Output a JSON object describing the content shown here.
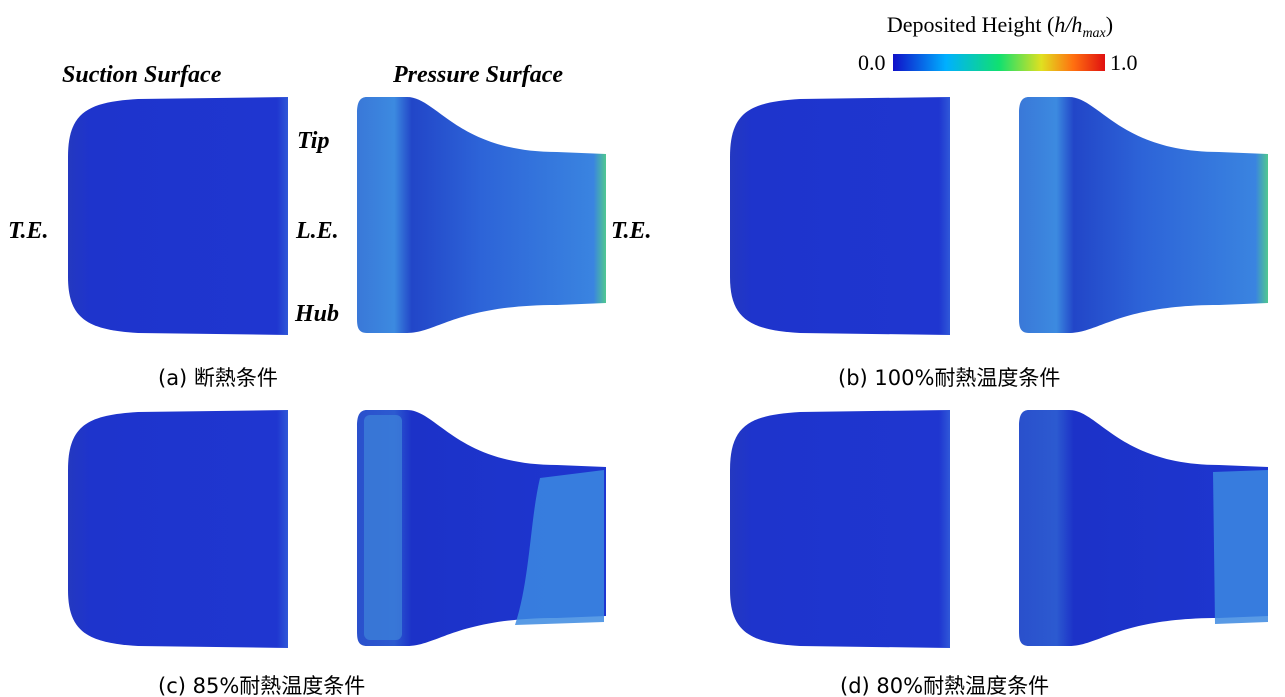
{
  "colorbar": {
    "title": {
      "prefix": "Deposited Height (",
      "variable": "h/h",
      "subscript": "max",
      "suffix": ")"
    },
    "min_label": "0.0",
    "max_label": "1.0"
  },
  "labels": {
    "suction_surface": "Suction Surface",
    "pressure_surface": "Pressure Surface",
    "tip": "Tip",
    "leading_edge": "L.E.",
    "hub": "Hub",
    "trailing_edge_left": "T.E.",
    "trailing_edge_right": "T.E."
  },
  "panels": [
    {
      "caption": "(a) 断熱条件"
    },
    {
      "caption": "(b) 100%耐熱温度条件"
    },
    {
      "caption": "(c) 85%耐熱温度条件"
    },
    {
      "caption": "(d) 80%耐熱温度条件"
    }
  ]
}
